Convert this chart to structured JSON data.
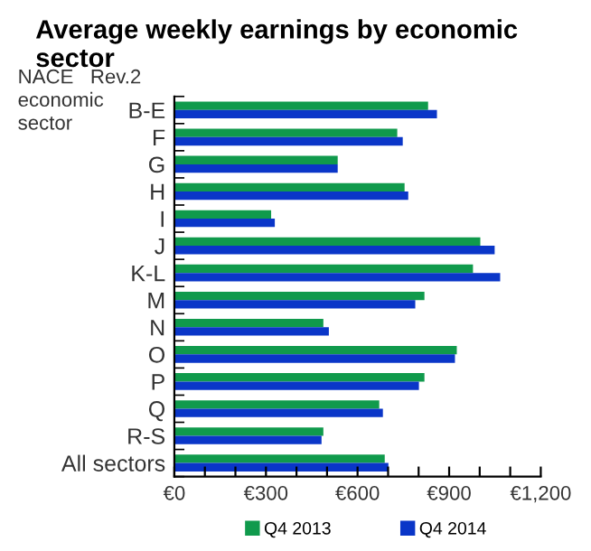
{
  "chart_data": {
    "type": "bar",
    "orientation": "horizontal",
    "title": "Average weekly earnings by economic sector",
    "ylabel": "NACE   Rev.2\neconomic\nsector",
    "categories": [
      "B-E",
      "F",
      "G",
      "H",
      "I",
      "J",
      "K-L",
      "M",
      "N",
      "O",
      "P",
      "Q",
      "R-S",
      "All sectors"
    ],
    "series": [
      {
        "name": "Q4 2013",
        "color": "#109a4c",
        "values": [
          831,
          730,
          535,
          754,
          317,
          1002,
          978,
          819,
          488,
          925,
          819,
          671,
          488,
          689
        ]
      },
      {
        "name": "Q4 2014",
        "color": "#0a36c8",
        "values": [
          860,
          748,
          535,
          766,
          329,
          1049,
          1067,
          789,
          506,
          919,
          801,
          683,
          482,
          701
        ]
      }
    ],
    "xlim": [
      0,
      1200
    ],
    "xticks": [
      {
        "value": 0,
        "label": "€0"
      },
      {
        "value": 100,
        "label": null
      },
      {
        "value": 200,
        "label": null
      },
      {
        "value": 300,
        "label": "€300"
      },
      {
        "value": 400,
        "label": null
      },
      {
        "value": 500,
        "label": null
      },
      {
        "value": 600,
        "label": "€600"
      },
      {
        "value": 700,
        "label": null
      },
      {
        "value": 800,
        "label": null
      },
      {
        "value": 900,
        "label": "€900"
      },
      {
        "value": 1000,
        "label": null
      },
      {
        "value": 1100,
        "label": null
      },
      {
        "value": 1200,
        "label": "€1,200"
      }
    ],
    "grid": false,
    "legend": "bottom"
  }
}
